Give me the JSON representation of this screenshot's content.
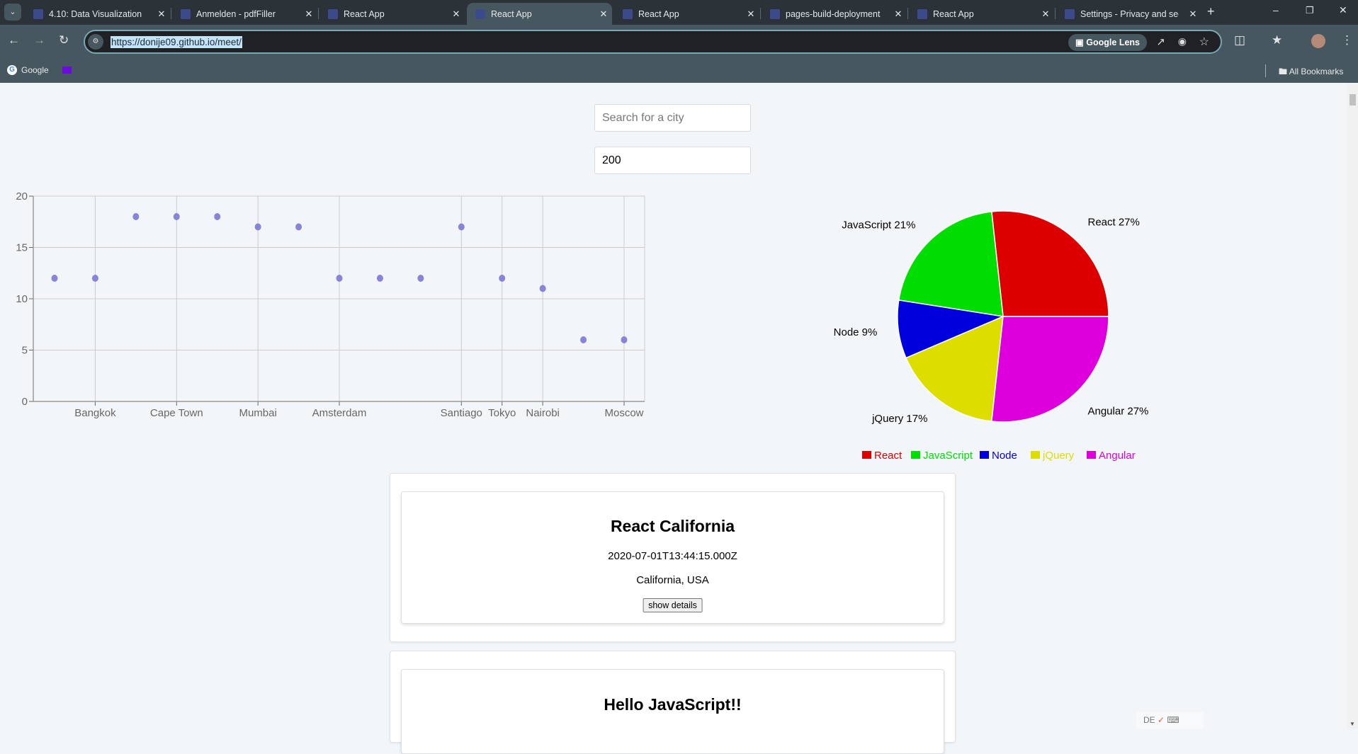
{
  "browser": {
    "tabs": [
      {
        "title": "4.10: Data Visualization",
        "active": false
      },
      {
        "title": "Anmelden - pdfFiller",
        "active": false
      },
      {
        "title": "React App",
        "active": false
      },
      {
        "title": "React App",
        "active": true
      },
      {
        "title": "React App",
        "active": false
      },
      {
        "title": "pages-build-deployment",
        "active": false
      },
      {
        "title": "React App",
        "active": false
      },
      {
        "title": "Settings - Privacy and sec",
        "active": false
      }
    ],
    "url": "https://donije09.github.io/meet/",
    "google_lens_label": "Google Lens",
    "bookmarks": [
      {
        "label": "Google"
      }
    ],
    "all_bookmarks_label": "All Bookmarks"
  },
  "search": {
    "placeholder": "Search for a city",
    "value": ""
  },
  "number_of_events": {
    "value": "200"
  },
  "chart_data": [
    {
      "type": "scatter",
      "categories": [
        "",
        "Bangkok",
        "",
        "Cape Town",
        "",
        "Mumbai",
        "",
        "Amsterdam",
        "",
        "",
        "Santiago",
        "Tokyo",
        "Nairobi",
        "",
        "Moscow"
      ],
      "values": [
        12,
        12,
        18,
        18,
        18,
        17,
        17,
        12,
        12,
        12,
        17,
        12,
        11,
        6,
        6
      ],
      "ylim": [
        0,
        20
      ],
      "yticks": [
        0,
        5,
        10,
        15,
        20
      ],
      "grid": true,
      "color": "#8884d8"
    },
    {
      "type": "pie",
      "series": [
        {
          "name": "React",
          "value": 27,
          "label": "React 27%",
          "color": "#dd0000"
        },
        {
          "name": "JavaScript",
          "value": 21,
          "label": "JavaScript 21%",
          "color": "#00dd00"
        },
        {
          "name": "Node",
          "value": 9,
          "label": "Node 9%",
          "color": "#0000dd"
        },
        {
          "name": "jQuery",
          "value": 17,
          "label": "jQuery 17%",
          "color": "#dddd00"
        },
        {
          "name": "Angular",
          "value": 27,
          "label": "Angular 27%",
          "color": "#dd00dd"
        }
      ],
      "legend": "bottom"
    }
  ],
  "events": [
    {
      "title": "React California",
      "date": "2020-07-01T13:44:15.000Z",
      "location": "California, USA",
      "button": "show details"
    },
    {
      "title": "Hello JavaScript!!"
    }
  ],
  "ime_bar": {
    "lang": "DE"
  }
}
